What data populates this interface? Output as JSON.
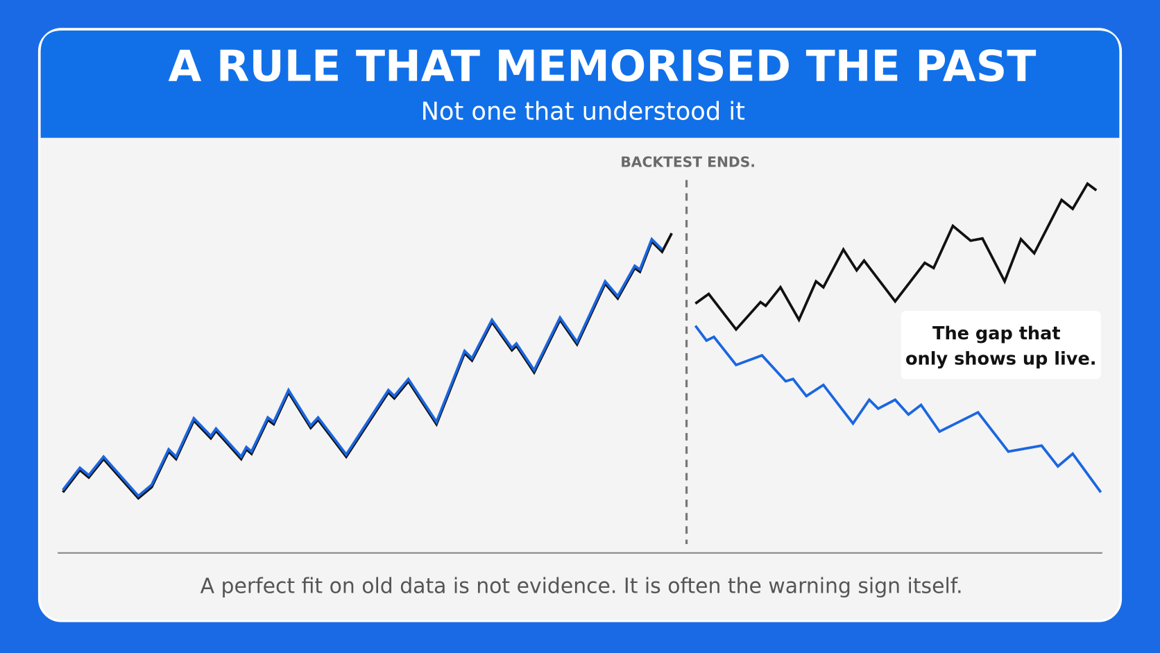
{
  "chart_data": {
    "type": "line",
    "title": "A RULE THAT MEMORISED THE PAST",
    "subtitle": "Not one that understood it",
    "marker_label": "BACKTEST ENDS.",
    "backtest_end_x": 848,
    "annotation": [
      "The gap that",
      "only shows up live."
    ],
    "caption": "A perfect fit on old data is not evidence. It is often the warning sign itself.",
    "xlim": [
      0,
      1410
    ],
    "ylim": [
      0,
      500
    ],
    "series": [
      {
        "color": "#111111",
        "x": [
          5,
          28,
          40,
          60,
          107,
          125,
          148,
          158,
          182,
          205,
          212,
          246,
          253,
          260,
          282,
          290,
          310,
          340,
          350,
          388,
          445,
          453,
          472,
          510,
          548,
          558,
          585,
          612,
          618,
          642,
          677,
          700,
          738,
          755,
          778,
          785,
          801,
          815,
          828
        ],
        "values": [
          80,
          110,
          100,
          125,
          72,
          87,
          135,
          125,
          177,
          153,
          163,
          125,
          138,
          132,
          178,
          172,
          215,
          167,
          178,
          128,
          215,
          207,
          230,
          172,
          268,
          258,
          310,
          272,
          278,
          242,
          313,
          280,
          362,
          342,
          383,
          378,
          419,
          405,
          430
        ]
      },
      {
        "color": "#1a66e0",
        "x": [
          5,
          28,
          40,
          60,
          107,
          125,
          148,
          158,
          182,
          205,
          212,
          246,
          253,
          260,
          282,
          290,
          310,
          340,
          350,
          388,
          445,
          453,
          472,
          510,
          548,
          558,
          585,
          612,
          618,
          642,
          677,
          700,
          738,
          755,
          778,
          785,
          801,
          815
        ],
        "values": [
          83,
          113,
          103,
          128,
          75,
          90,
          138,
          128,
          180,
          156,
          166,
          128,
          141,
          135,
          181,
          175,
          218,
          170,
          181,
          131,
          218,
          210,
          233,
          175,
          271,
          261,
          313,
          275,
          281,
          245,
          316,
          283,
          365,
          345,
          386,
          381,
          422,
          408
        ]
      },
      {
        "color": "#111111",
        "x": [
          860,
          878,
          915,
          948,
          955,
          975,
          1000,
          1023,
          1033,
          1060,
          1078,
          1088,
          1130,
          1170,
          1182,
          1208,
          1232,
          1248,
          1278,
          1300,
          1318,
          1355,
          1370,
          1390,
          1402
        ],
        "values": [
          335,
          348,
          300,
          337,
          332,
          357,
          313,
          365,
          357,
          408,
          380,
          393,
          338,
          390,
          383,
          440,
          420,
          423,
          365,
          422,
          403,
          475,
          463,
          497,
          488
        ]
      },
      {
        "color": "#1a66e0",
        "x": [
          860,
          875,
          885,
          915,
          950,
          982,
          992,
          1010,
          1033,
          1073,
          1095,
          1107,
          1130,
          1148,
          1165,
          1190,
          1242,
          1283,
          1328,
          1350,
          1370,
          1408
        ],
        "values": [
          305,
          285,
          290,
          252,
          265,
          230,
          233,
          210,
          225,
          173,
          205,
          193,
          205,
          185,
          198,
          162,
          188,
          135,
          143,
          115,
          132,
          80
        ]
      }
    ]
  }
}
